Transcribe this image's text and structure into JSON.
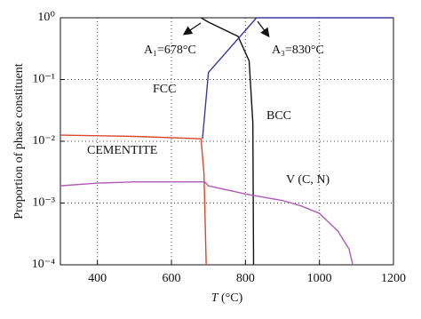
{
  "chart_data": {
    "type": "line",
    "y_label": "Proportion of phase constituent",
    "x_label_var": "T",
    "x_label_unit": " (°C)",
    "xlim": [
      300,
      1200
    ],
    "xticks": [
      400,
      600,
      800,
      1000,
      1200
    ],
    "ylim": [
      0.0001,
      1
    ],
    "log_y": true,
    "grid": true,
    "yticks": [
      {
        "value": 0.0001,
        "label": "10⁻⁴"
      },
      {
        "value": 0.001,
        "label": "10⁻³"
      },
      {
        "value": 0.01,
        "label": "10⁻²"
      },
      {
        "value": 0.1,
        "label": "10⁻¹"
      },
      {
        "value": 1,
        "label": "10⁰"
      }
    ],
    "annotations": [
      "A₁=678°C",
      "A₃=830°C",
      "FCC",
      "BCC",
      "CEMENTITE",
      "V (C, N)"
    ],
    "series": [
      {
        "color": "#111111",
        "x": [
          680,
          700,
          780,
          810,
          820,
          822
        ],
        "values": [
          1,
          0.85,
          0.5,
          0.2,
          0.02,
          0.0001
        ]
      },
      {
        "color": "#3a3a9e",
        "x": [
          684,
          700,
          830,
          1200
        ],
        "values": [
          0.011,
          0.13,
          1,
          1
        ]
      },
      {
        "color": "#d9482b",
        "x": [
          300,
          500,
          680,
          688,
          694
        ],
        "values": [
          0.0126,
          0.012,
          0.011,
          0.003,
          0.0001
        ]
      },
      {
        "color": "#b05ab8",
        "x": [
          300,
          400,
          500,
          600,
          690,
          700,
          800,
          900,
          950,
          1000,
          1050,
          1080,
          1090
        ],
        "values": [
          0.0019,
          0.0021,
          0.0022,
          0.0022,
          0.0022,
          0.0019,
          0.0014,
          0.0011,
          0.0009,
          0.00068,
          0.00035,
          0.00018,
          0.0001
        ]
      }
    ]
  }
}
